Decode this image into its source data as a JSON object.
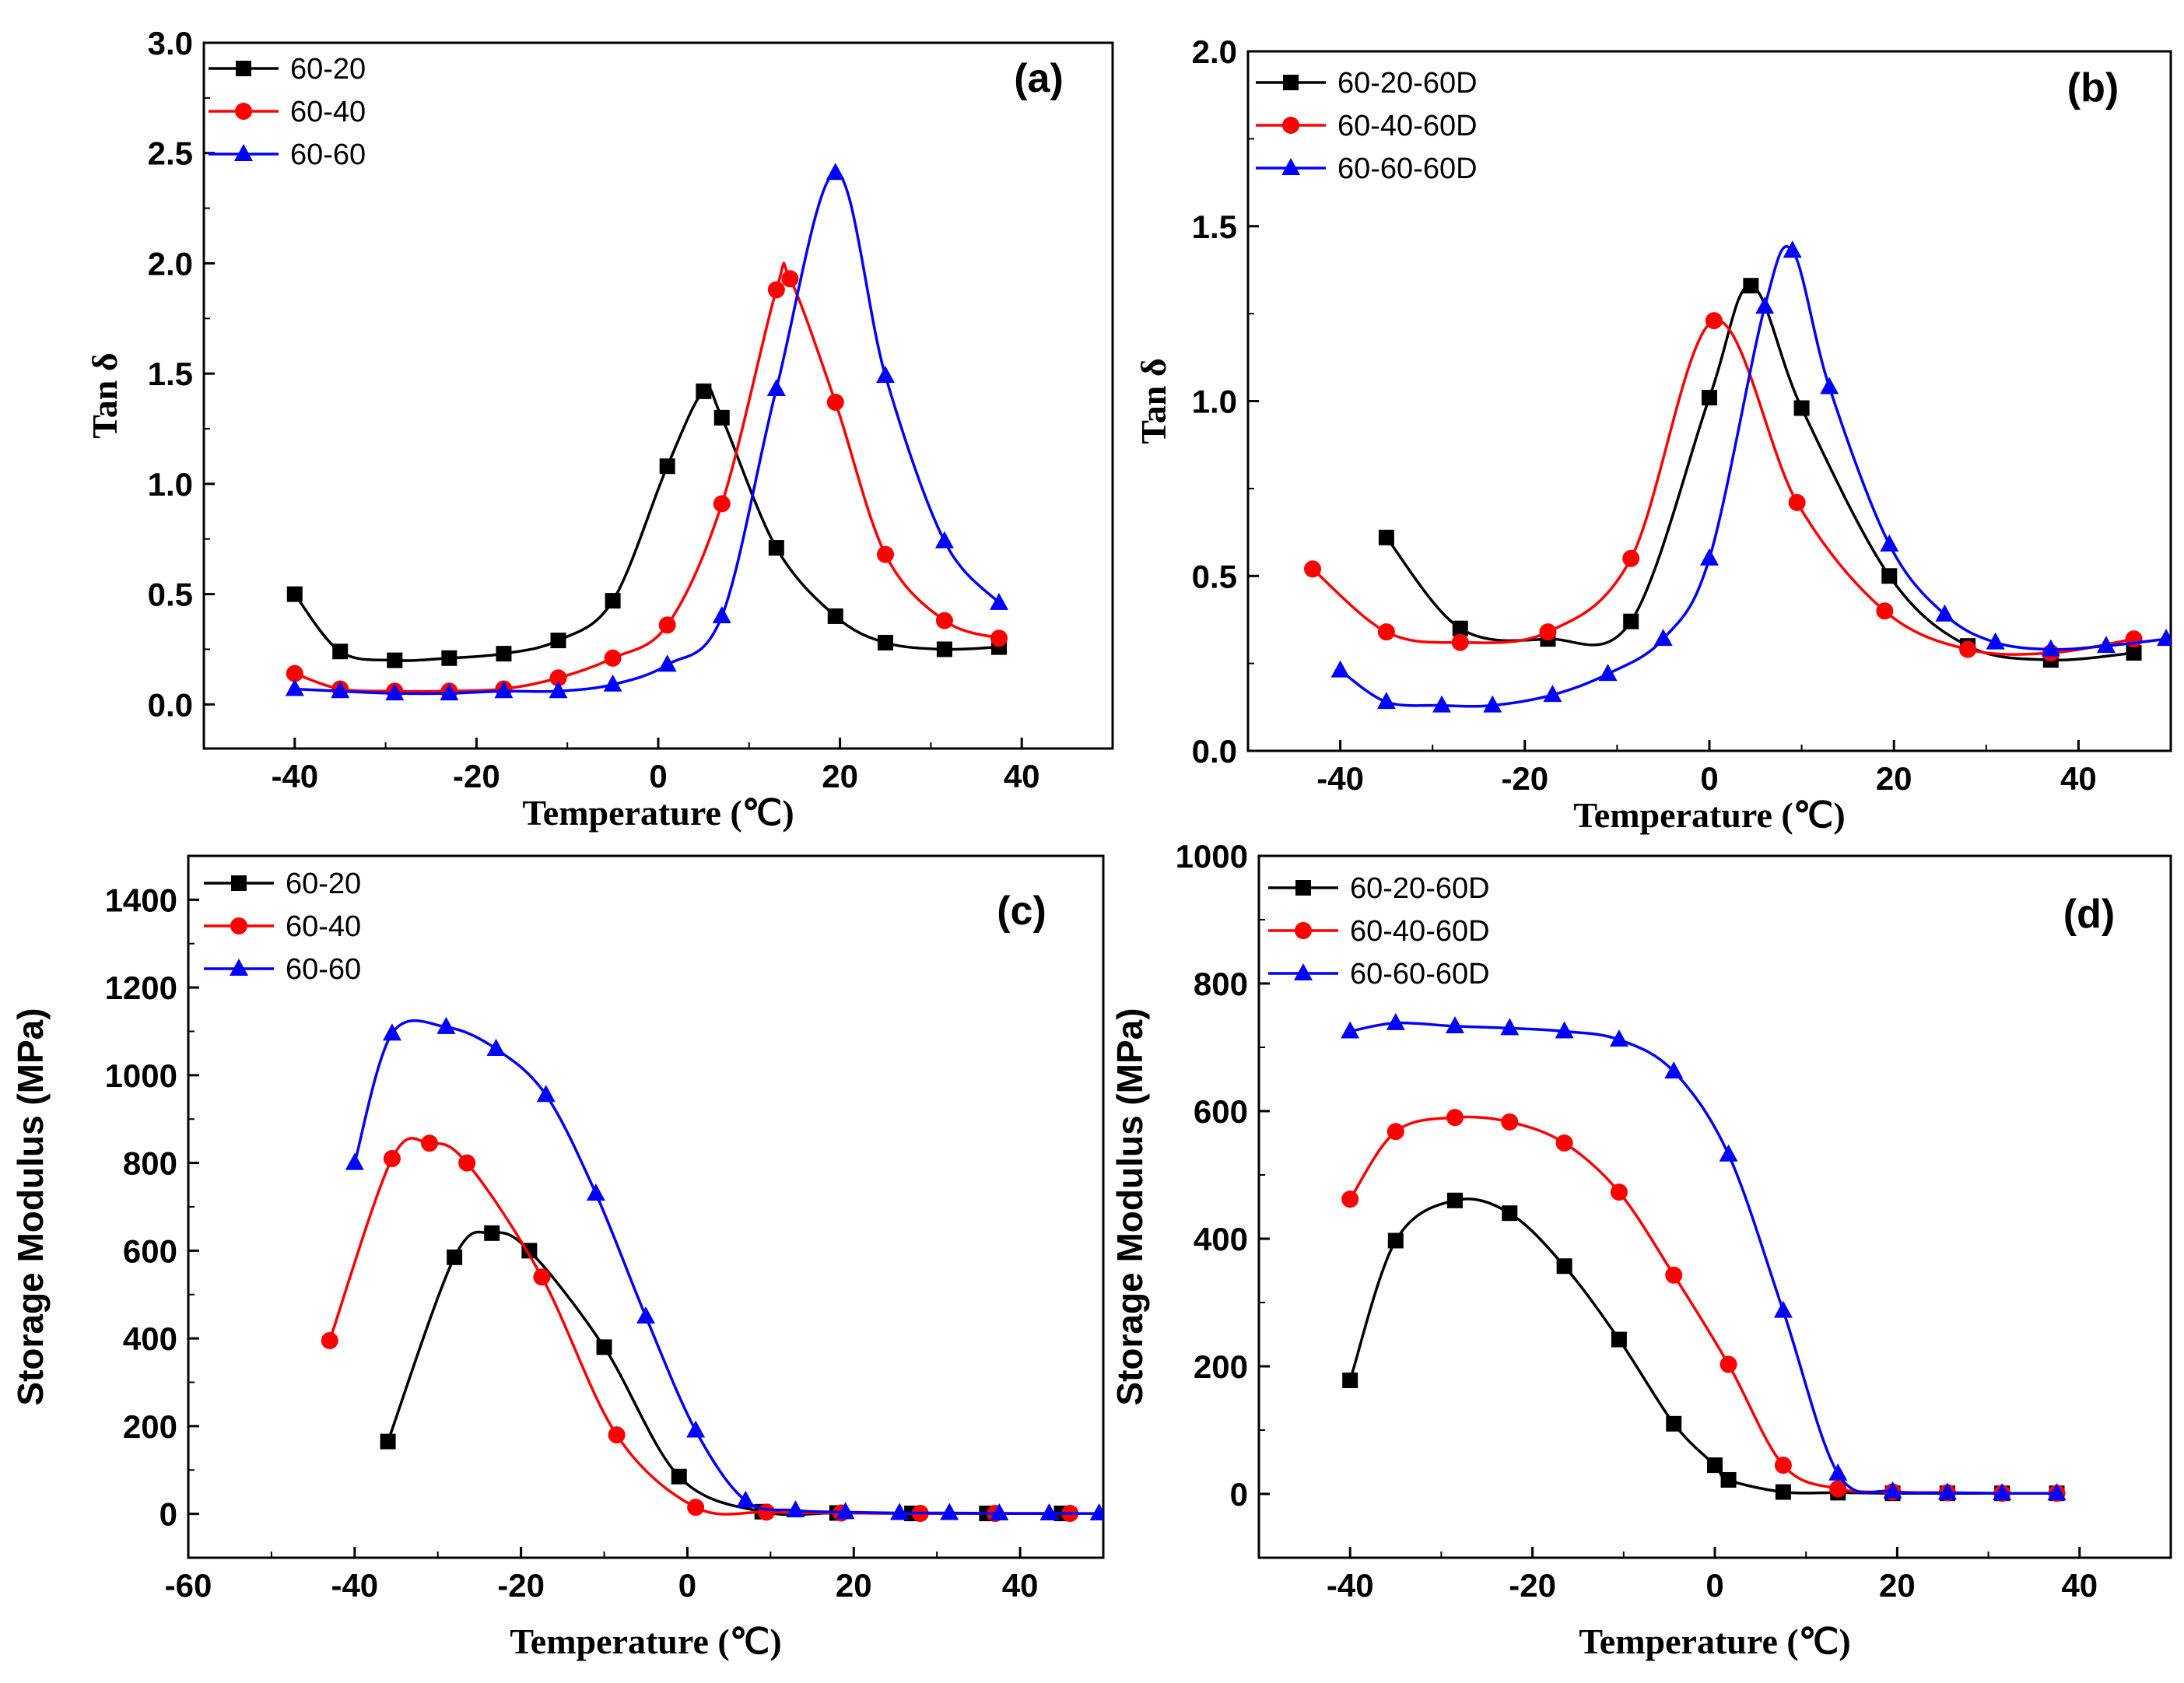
{
  "chart_data": [
    {
      "type": "line",
      "panel_label": "(a)",
      "xlabel": "Temperature (℃)",
      "ylabel": "Tan δ",
      "xlim": [
        -50,
        50
      ],
      "ylim": [
        -0.2,
        3.0
      ],
      "xticks": [
        -40,
        -20,
        0,
        20,
        40
      ],
      "yticks": [
        0.0,
        0.5,
        1.0,
        1.5,
        2.0,
        2.5,
        3.0
      ],
      "ytick_labels": [
        "0.0",
        "0.5",
        "1.0",
        "1.5",
        "2.0",
        "2.5",
        "3.0"
      ],
      "grid": false,
      "legend_position": "top-left",
      "series": [
        {
          "name": "60-20",
          "color": "#000000",
          "marker": "square",
          "x": [
            -40,
            -35,
            -29,
            -23,
            -17,
            -11,
            -5,
            1,
            5,
            7,
            13,
            19.5,
            25,
            31.5,
            37.5
          ],
          "y": [
            0.5,
            0.24,
            0.2,
            0.21,
            0.23,
            0.29,
            0.47,
            1.08,
            1.42,
            1.3,
            0.71,
            0.4,
            0.28,
            0.25,
            0.26
          ]
        },
        {
          "name": "60-40",
          "color": "#ff0000",
          "marker": "circle",
          "x": [
            -40,
            -35,
            -29,
            -23,
            -17,
            -11,
            -5,
            1,
            7,
            13,
            14.5,
            19.5,
            25,
            31.5,
            37.5
          ],
          "y": [
            0.14,
            0.07,
            0.06,
            0.06,
            0.07,
            0.12,
            0.21,
            0.36,
            0.91,
            1.88,
            1.93,
            1.37,
            0.68,
            0.38,
            0.3
          ]
        },
        {
          "name": "60-60",
          "color": "#0000ff",
          "marker": "triangle",
          "x": [
            -40,
            -35,
            -29,
            -23,
            -17,
            -11,
            -5,
            1,
            7,
            13,
            19.5,
            25,
            31.5,
            37.5
          ],
          "y": [
            0.07,
            0.06,
            0.05,
            0.05,
            0.06,
            0.06,
            0.09,
            0.18,
            0.4,
            1.43,
            2.41,
            1.49,
            0.74,
            0.46
          ]
        }
      ]
    },
    {
      "type": "line",
      "panel_label": "(b)",
      "xlabel": "Temperature (℃)",
      "ylabel": "Tan δ",
      "xlim": [
        -50,
        50
      ],
      "ylim": [
        0.0,
        2.0
      ],
      "xticks": [
        -40,
        -20,
        0,
        20,
        40
      ],
      "yticks": [
        0.0,
        0.5,
        1.0,
        1.5,
        2.0
      ],
      "ytick_labels": [
        "0.0",
        "0.5",
        "1.0",
        "1.5",
        "2.0"
      ],
      "grid": false,
      "legend_position": "top-left",
      "series": [
        {
          "name": "60-20-60D",
          "color": "#000000",
          "marker": "square",
          "x": [
            -35,
            -27,
            -17.5,
            -8.5,
            0,
            4.5,
            10,
            19.5,
            28,
            37,
            46
          ],
          "y": [
            0.61,
            0.35,
            0.32,
            0.37,
            1.01,
            1.33,
            0.98,
            0.5,
            0.3,
            0.26,
            0.28
          ]
        },
        {
          "name": "60-40-60D",
          "color": "#ff0000",
          "marker": "circle",
          "x": [
            -43,
            -35,
            -27,
            -17.5,
            -8.5,
            0.5,
            9.5,
            19,
            28,
            37,
            46
          ],
          "y": [
            0.52,
            0.34,
            0.31,
            0.34,
            0.55,
            1.23,
            0.71,
            0.4,
            0.29,
            0.28,
            0.32
          ]
        },
        {
          "name": "60-60-60D",
          "color": "#0000ff",
          "marker": "triangle",
          "x": [
            -40,
            -35,
            -29,
            -23.5,
            -17,
            -11,
            -5,
            0,
            6,
            9,
            13,
            19.5,
            25.5,
            31,
            37,
            43,
            49.5
          ],
          "y": [
            0.23,
            0.14,
            0.13,
            0.13,
            0.16,
            0.22,
            0.32,
            0.55,
            1.27,
            1.43,
            1.04,
            0.59,
            0.39,
            0.31,
            0.29,
            0.3,
            0.32
          ]
        }
      ]
    },
    {
      "type": "line",
      "panel_label": "(c)",
      "xlabel": "Temperature (℃)",
      "ylabel": "Storage Modulus (MPa)",
      "xlim": [
        -60,
        50
      ],
      "ylim": [
        -100,
        1500
      ],
      "xticks": [
        -60,
        -40,
        -20,
        0,
        20,
        40
      ],
      "yticks": [
        0,
        200,
        400,
        600,
        800,
        1000,
        1200,
        1400
      ],
      "ytick_labels": [
        "0",
        "200",
        "400",
        "600",
        "800",
        "1000",
        "1200",
        "1400"
      ],
      "grid": false,
      "legend_position": "top-left",
      "series": [
        {
          "name": "60-20",
          "color": "#000000",
          "marker": "square",
          "x": [
            -36,
            -28,
            -23.5,
            -19,
            -10,
            -1,
            9,
            18,
            27,
            36,
            45
          ],
          "y": [
            165,
            585,
            640,
            600,
            380,
            85,
            5,
            2,
            1,
            1,
            1
          ]
        },
        {
          "name": "60-40",
          "color": "#ff0000",
          "marker": "circle",
          "x": [
            -43,
            -35.5,
            -31,
            -26.5,
            -17.5,
            -8.5,
            1,
            9.5,
            18.5,
            28,
            37,
            46
          ],
          "y": [
            395,
            810,
            845,
            800,
            540,
            180,
            15,
            4,
            2,
            1,
            1,
            1
          ]
        },
        {
          "name": "60-60",
          "color": "#0000ff",
          "marker": "triangle",
          "x": [
            -40,
            -35.5,
            -29,
            -23,
            -17,
            -11,
            -5,
            1,
            7,
            13,
            19,
            25.5,
            31.5,
            37.5,
            43.5,
            49.5
          ],
          "y": [
            800,
            1095,
            1110,
            1060,
            955,
            730,
            450,
            190,
            30,
            8,
            4,
            2,
            2,
            1,
            1,
            1
          ]
        }
      ]
    },
    {
      "type": "line",
      "panel_label": "(d)",
      "xlabel": "Temperature (℃)",
      "ylabel": "Storage Modulus (MPa)",
      "xlim": [
        -50,
        50
      ],
      "ylim": [
        -100,
        1000
      ],
      "xticks": [
        -40,
        -20,
        0,
        20,
        40
      ],
      "yticks": [
        0,
        200,
        400,
        600,
        800,
        1000
      ],
      "ytick_labels": [
        "0",
        "200",
        "400",
        "600",
        "800",
        "1000"
      ],
      "grid": false,
      "legend_position": "top-left",
      "series": [
        {
          "name": "60-20-60D",
          "color": "#000000",
          "marker": "square",
          "x": [
            -40,
            -35,
            -28.5,
            -22.5,
            -16.5,
            -10.5,
            -4.5,
            0,
            1.5,
            7.5,
            13.5,
            19.5,
            25.5,
            31.5,
            37.5
          ],
          "y": [
            178,
            397,
            460,
            440,
            357,
            242,
            110,
            45,
            22,
            3,
            2,
            1,
            1,
            1,
            1
          ]
        },
        {
          "name": "60-40-60D",
          "color": "#ff0000",
          "marker": "circle",
          "x": [
            -40,
            -35,
            -28.5,
            -22.5,
            -16.5,
            -10.5,
            -4.5,
            1.5,
            7.5,
            13.5,
            19.5,
            25.5,
            31.5,
            37.5
          ],
          "y": [
            462,
            568,
            590,
            583,
            550,
            473,
            343,
            203,
            45,
            8,
            3,
            2,
            1,
            1
          ]
        },
        {
          "name": "60-60-60D",
          "color": "#0000ff",
          "marker": "triangle",
          "x": [
            -40,
            -35,
            -28.5,
            -22.5,
            -16.5,
            -10.5,
            -4.5,
            1.5,
            7.5,
            13.5,
            19.5,
            25.5,
            31.5,
            37.5
          ],
          "y": [
            725,
            738,
            733,
            730,
            725,
            712,
            662,
            532,
            287,
            32,
            4,
            2,
            1,
            1
          ]
        }
      ]
    }
  ]
}
